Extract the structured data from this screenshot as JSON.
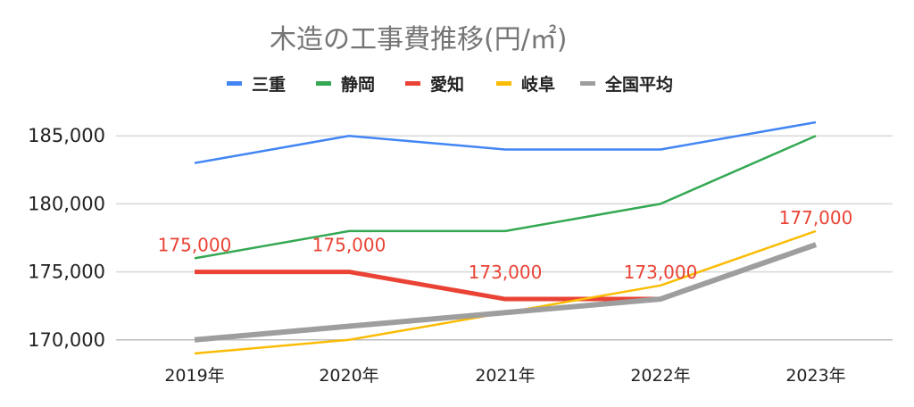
{
  "chart_data": {
    "type": "line",
    "title": "木造の工事費推移(円/㎡)",
    "xlabel": "",
    "ylabel": "",
    "categories": [
      "2019年",
      "2020年",
      "2021年",
      "2022年",
      "2023年"
    ],
    "ylim": [
      169000,
      186000
    ],
    "yticks": [
      170000,
      175000,
      180000,
      185000
    ],
    "ytick_labels": [
      "170,000",
      "175,000",
      "180,000",
      "185,000"
    ],
    "grid": true,
    "legend_position": "top",
    "series": [
      {
        "name": "三重",
        "color": "#4285F4",
        "values": [
          183000,
          185000,
          184000,
          184000,
          186000
        ]
      },
      {
        "name": "静岡",
        "color": "#34A853",
        "values": [
          176000,
          178000,
          178000,
          180000,
          185000
        ]
      },
      {
        "name": "愛知",
        "color": "#EA4335",
        "values": [
          175000,
          175000,
          173000,
          173000,
          177000
        ],
        "data_labels": [
          "175,000",
          "175,000",
          "173,000",
          "173,000",
          "177,000"
        ]
      },
      {
        "name": "岐阜",
        "color": "#FBBC04",
        "values": [
          169000,
          170000,
          172000,
          174000,
          178000
        ]
      },
      {
        "name": "全国平均",
        "color": "#9E9E9E",
        "values": [
          170000,
          171000,
          172000,
          173000,
          177000
        ]
      }
    ]
  }
}
